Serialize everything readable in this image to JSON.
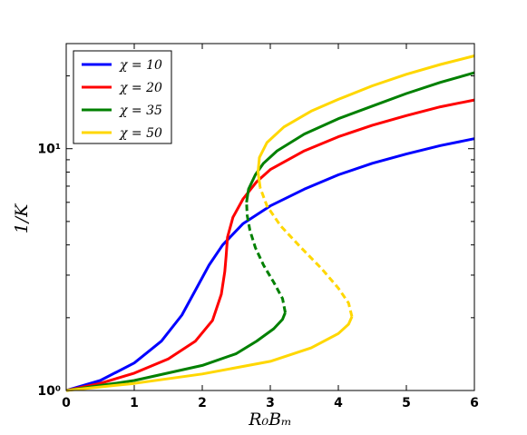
{
  "chart_data": {
    "type": "line",
    "xlabel": "R₀Bₘ",
    "ylabel": "1/K",
    "xlim": [
      0,
      6
    ],
    "ylim": [
      1,
      27.2
    ],
    "yscale": "log",
    "xticks": [
      {
        "value": 0,
        "label": "0"
      },
      {
        "value": 1,
        "label": "1"
      },
      {
        "value": 2,
        "label": "2"
      },
      {
        "value": 3,
        "label": "3"
      },
      {
        "value": 4,
        "label": "4"
      },
      {
        "value": 5,
        "label": "5"
      },
      {
        "value": 6,
        "label": "6"
      }
    ],
    "yticks": [
      {
        "value": 1,
        "label": "10⁰"
      },
      {
        "value": 10,
        "label": "10¹"
      }
    ],
    "legend_position": "top-left",
    "grid": false,
    "series": [
      {
        "name": "χ = 10",
        "color": "#0000ff",
        "segments": [
          {
            "style": "solid",
            "points": [
              [
                0,
                1.0
              ],
              [
                0.5,
                1.1
              ],
              [
                1.0,
                1.3
              ],
              [
                1.4,
                1.6
              ],
              [
                1.7,
                2.05
              ],
              [
                1.9,
                2.6
              ],
              [
                2.1,
                3.3
              ],
              [
                2.3,
                4.0
              ],
              [
                2.6,
                4.9
              ],
              [
                3.0,
                5.8
              ],
              [
                3.5,
                6.8
              ],
              [
                4.0,
                7.8
              ],
              [
                4.5,
                8.7
              ],
              [
                5.0,
                9.5
              ],
              [
                5.5,
                10.3
              ],
              [
                6.0,
                11.0
              ]
            ]
          }
        ]
      },
      {
        "name": "χ = 20",
        "color": "#ff0000",
        "segments": [
          {
            "style": "solid",
            "points": [
              [
                0,
                1.0
              ],
              [
                0.5,
                1.07
              ],
              [
                1.0,
                1.18
              ],
              [
                1.5,
                1.35
              ],
              [
                1.9,
                1.6
              ],
              [
                2.15,
                1.95
              ],
              [
                2.28,
                2.5
              ],
              [
                2.33,
                3.1
              ],
              [
                2.35,
                3.6
              ],
              [
                2.37,
                4.3
              ],
              [
                2.45,
                5.2
              ],
              [
                2.6,
                6.2
              ],
              [
                2.8,
                7.3
              ],
              [
                3.0,
                8.2
              ],
              [
                3.5,
                9.8
              ],
              [
                4.0,
                11.2
              ],
              [
                4.5,
                12.5
              ],
              [
                5.0,
                13.7
              ],
              [
                5.5,
                14.9
              ],
              [
                6.0,
                15.9
              ]
            ]
          }
        ]
      },
      {
        "name": "χ = 35",
        "color": "#008000",
        "segments": [
          {
            "style": "solid",
            "points": [
              [
                0,
                1.0
              ],
              [
                1.0,
                1.1
              ],
              [
                2.0,
                1.27
              ],
              [
                2.5,
                1.42
              ],
              [
                2.8,
                1.6
              ],
              [
                3.05,
                1.8
              ],
              [
                3.18,
                1.97
              ],
              [
                3.22,
                2.1
              ]
            ]
          },
          {
            "style": "dashed",
            "points": [
              [
                3.22,
                2.1
              ],
              [
                3.18,
                2.4
              ],
              [
                3.05,
                2.8
              ],
              [
                2.9,
                3.3
              ],
              [
                2.78,
                3.9
              ],
              [
                2.7,
                4.6
              ],
              [
                2.66,
                5.3
              ],
              [
                2.65,
                6.0
              ]
            ]
          },
          {
            "style": "solid",
            "points": [
              [
                2.65,
                6.0
              ],
              [
                2.68,
                6.8
              ],
              [
                2.78,
                7.8
              ],
              [
                2.9,
                8.7
              ],
              [
                3.1,
                9.8
              ],
              [
                3.5,
                11.5
              ],
              [
                4.0,
                13.3
              ],
              [
                4.5,
                15.0
              ],
              [
                5.0,
                16.9
              ],
              [
                5.5,
                18.8
              ],
              [
                6.0,
                20.6
              ]
            ]
          }
        ]
      },
      {
        "name": "χ = 50",
        "color": "#ffd700",
        "segments": [
          {
            "style": "solid",
            "points": [
              [
                0,
                1.0
              ],
              [
                1.0,
                1.07
              ],
              [
                2.0,
                1.17
              ],
              [
                3.0,
                1.32
              ],
              [
                3.6,
                1.5
              ],
              [
                4.0,
                1.72
              ],
              [
                4.15,
                1.88
              ],
              [
                4.2,
                2.02
              ]
            ]
          },
          {
            "style": "dashed",
            "points": [
              [
                4.2,
                2.02
              ],
              [
                4.15,
                2.3
              ],
              [
                4.0,
                2.65
              ],
              [
                3.75,
                3.2
              ],
              [
                3.45,
                3.9
              ],
              [
                3.15,
                4.8
              ],
              [
                2.95,
                5.8
              ],
              [
                2.85,
                6.9
              ]
            ]
          },
          {
            "style": "solid",
            "points": [
              [
                2.85,
                6.9
              ],
              [
                2.82,
                8.0
              ],
              [
                2.84,
                9.2
              ],
              [
                2.95,
                10.6
              ],
              [
                3.2,
                12.3
              ],
              [
                3.6,
                14.3
              ],
              [
                4.0,
                16.0
              ],
              [
                4.5,
                18.2
              ],
              [
                5.0,
                20.3
              ],
              [
                5.5,
                22.3
              ],
              [
                6.0,
                24.2
              ]
            ]
          }
        ]
      }
    ]
  }
}
